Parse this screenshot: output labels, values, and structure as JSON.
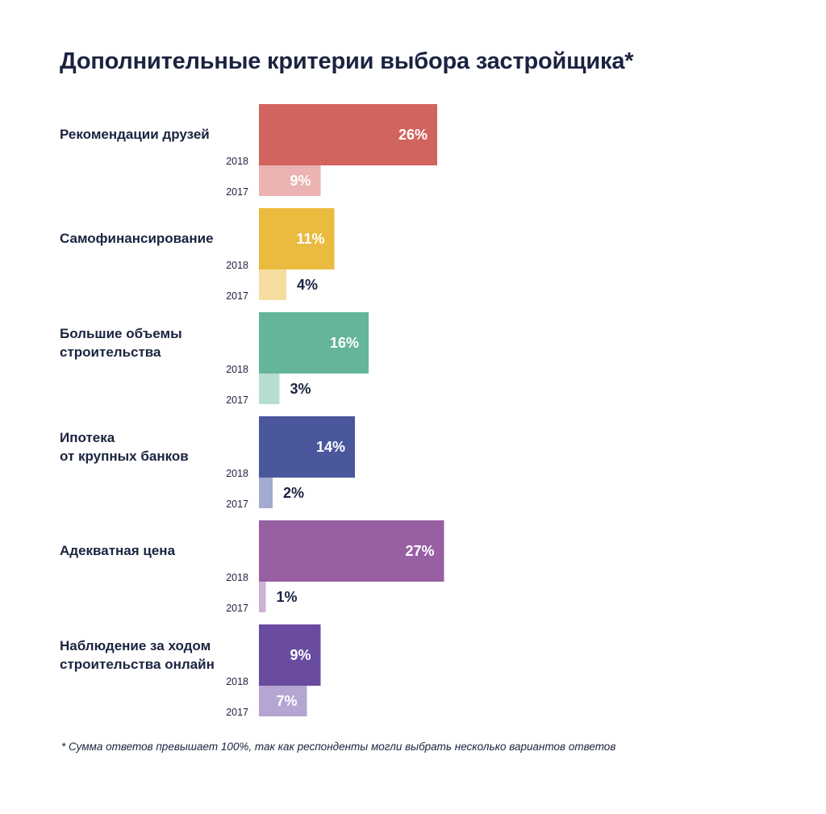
{
  "chart_data": {
    "type": "bar",
    "orientation": "horizontal",
    "title": "Дополнительные критерии выбора застройщика*",
    "footnote": "* Сумма ответов превышает 100%, так как респонденты могли выбрать несколько вариантов ответов",
    "series": [
      {
        "name": "2018",
        "values": [
          26,
          11,
          16,
          14,
          27,
          9
        ]
      },
      {
        "name": "2017",
        "values": [
          9,
          4,
          3,
          2,
          1,
          7
        ]
      }
    ],
    "categories": [
      {
        "lines": [
          "Рекомендации друзей"
        ],
        "color_2018": "#d2645e",
        "color_2017": "#ebb3b2",
        "label_2018": "26%",
        "label_2017": "9%"
      },
      {
        "lines": [
          "Самофинансирование"
        ],
        "color_2018": "#eabb3e",
        "color_2017": "#f5dd9f",
        "label_2018": "11%",
        "label_2017": "4%"
      },
      {
        "lines": [
          "Большие объемы",
          "строительства"
        ],
        "color_2018": "#65b59a",
        "color_2017": "#b7ddd0",
        "label_2018": "16%",
        "label_2017": "3%"
      },
      {
        "lines": [
          "Ипотека",
          "от крупных банков"
        ],
        "color_2018": "#4a579d",
        "color_2017": "#a4abd0",
        "label_2018": "14%",
        "label_2017": "2%"
      },
      {
        "lines": [
          "Адекватная цена"
        ],
        "color_2018": "#9860a3",
        "color_2017": "#cfb1d4",
        "label_2018": "27%",
        "label_2017": "1%"
      },
      {
        "lines": [
          "Наблюдение за ходом",
          "строительства онлайн"
        ],
        "color_2018": "#694ca0",
        "color_2017": "#b5a5d2",
        "label_2018": "9%",
        "label_2017": "7%"
      }
    ],
    "year_labels": [
      "2018",
      "2017"
    ],
    "xlim": [
      0,
      30
    ],
    "grid": false,
    "legend": "none"
  }
}
